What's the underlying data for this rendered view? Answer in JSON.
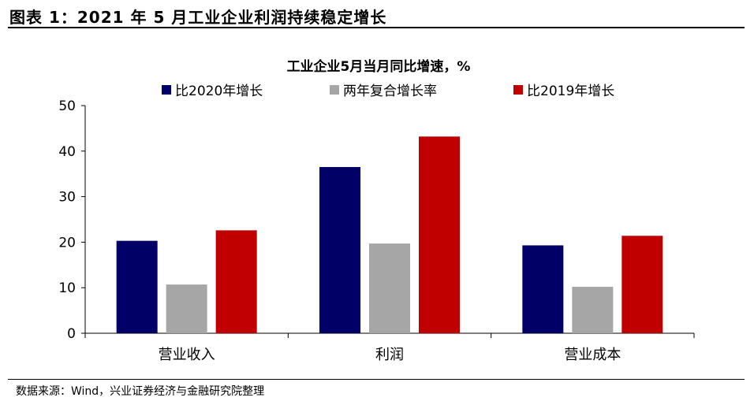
{
  "figure_title": "图表 1：2021 年 5 月工业企业利润持续稳定增长",
  "source_note": "数据来源：Wind，兴业证券经济与金融研究院整理",
  "chart_data": {
    "type": "bar",
    "title": "工业企业5月当月同比增速，%",
    "xlabel": "",
    "ylabel": "",
    "categories": [
      "营业收入",
      "利润",
      "营业成本"
    ],
    "series": [
      {
        "name": "比2020年增长",
        "color": "#000066",
        "values": [
          20.3,
          36.5,
          19.3
        ]
      },
      {
        "name": "两年复合增长率",
        "color": "#a6a6a6",
        "values": [
          10.7,
          19.7,
          10.2
        ]
      },
      {
        "name": "比2019年增长",
        "color": "#c00000",
        "values": [
          22.6,
          43.2,
          21.4
        ]
      }
    ],
    "ylim": [
      0,
      50
    ],
    "yticks": [
      0,
      10,
      20,
      30,
      40,
      50
    ],
    "grid": false,
    "legend_position": "top"
  }
}
